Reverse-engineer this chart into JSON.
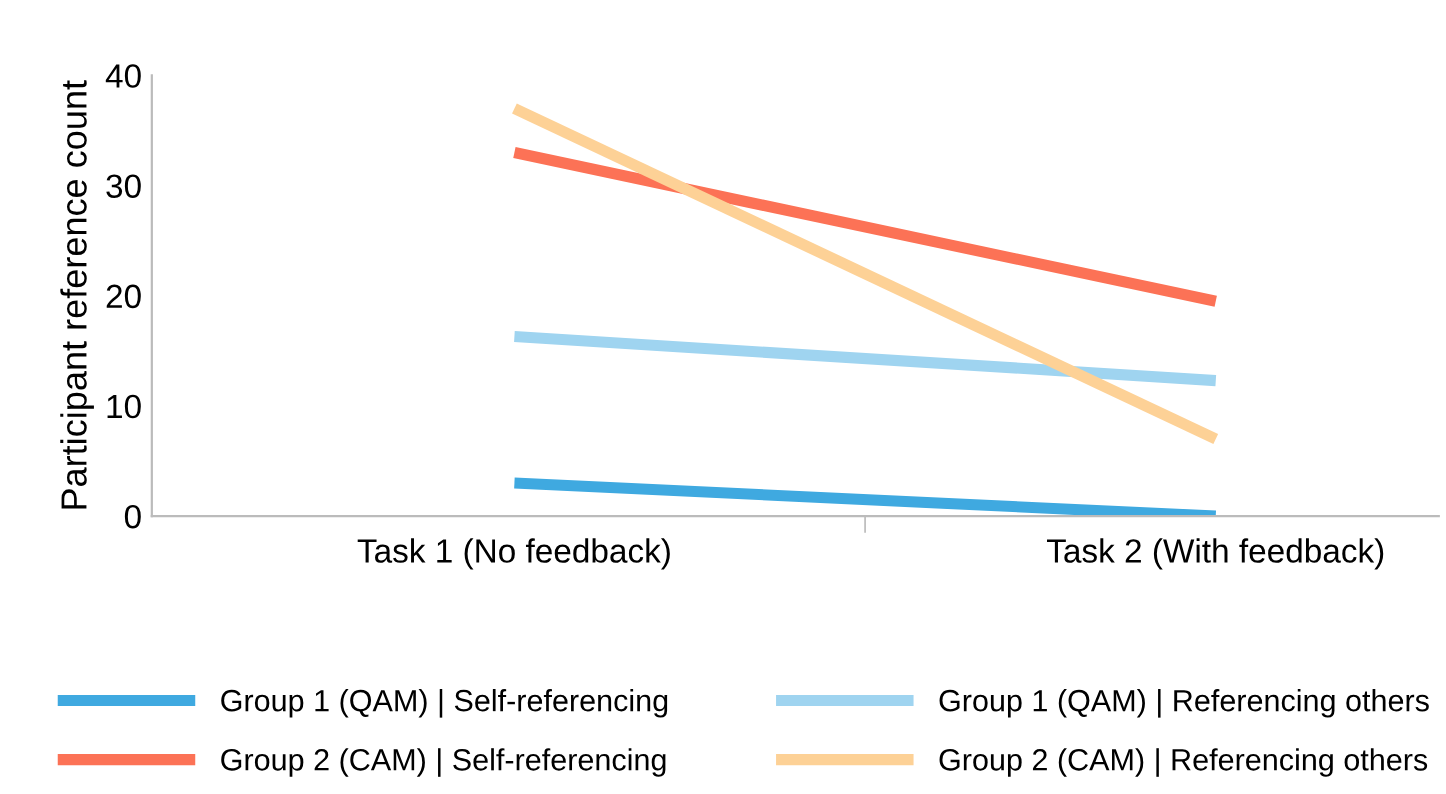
{
  "chart_data": {
    "type": "line",
    "ylabel": "Participant reference count",
    "categories": [
      "Task 1 (No feedback)",
      "Task 2 (With feedback)"
    ],
    "series": [
      {
        "name": "Group 1 (QAM) | Self-referencing",
        "color": "#3fa9e0",
        "values": [
          3,
          0
        ]
      },
      {
        "name": "Group 1 (QAM) | Referencing others",
        "color": "#9fd4f0",
        "values": [
          16.3,
          12.3
        ]
      },
      {
        "name": "Group 2 (CAM) | Self-referencing",
        "color": "#fc7256",
        "values": [
          33,
          19.5
        ]
      },
      {
        "name": "Group 2 (CAM) | Referencing others",
        "color": "#fdd196",
        "values": [
          37,
          7
        ]
      }
    ],
    "ylim": [
      0,
      40
    ],
    "yticks": [
      0,
      10,
      20,
      30,
      40
    ],
    "grid": false,
    "legend": "bottom",
    "marker": "none",
    "line_style": "solid"
  }
}
